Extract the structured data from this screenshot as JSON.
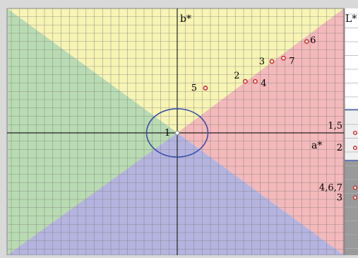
{
  "chart_data": {
    "type": "scatter",
    "title": "",
    "x_axis_label": "a*",
    "y_axis_label": "b*",
    "side_axis_label": "L*",
    "xlim": [
      -10,
      10
    ],
    "ylim": [
      -7,
      7
    ],
    "points": [
      {
        "label": "1",
        "x": 0,
        "y": 0
      },
      {
        "label": "2",
        "x": 4.1,
        "y": 3.1
      },
      {
        "label": "3",
        "x": 5.7,
        "y": 4.3
      },
      {
        "label": "4",
        "x": 4.7,
        "y": 3.1
      },
      {
        "label": "5",
        "x": 1.7,
        "y": 2.7
      },
      {
        "label": "6",
        "x": 7.8,
        "y": 5.5
      },
      {
        "label": "7",
        "x": 6.4,
        "y": 4.5
      }
    ],
    "circle": {
      "cx": 0,
      "cy": 0,
      "rx": 1.85,
      "ry": 1.45
    },
    "side_points": [
      {
        "label": "1,5",
        "y": 0
      },
      {
        "label": "2",
        "y": -0.9
      },
      {
        "label": "4,6,7",
        "y": -3.3
      },
      {
        "label": "3",
        "y": -3.9
      }
    ],
    "colors": {
      "top": "#f7f4b4",
      "right": "#f4b9bb",
      "bottom": "#b5b4e0",
      "left": "#b9dbb3",
      "point": "#d03030",
      "circle": "#3a4fa8"
    }
  }
}
